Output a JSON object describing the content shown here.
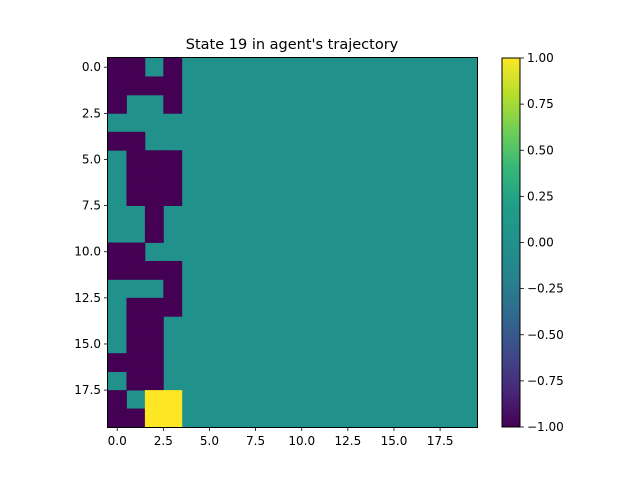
{
  "chart_data": {
    "type": "heatmap",
    "title": "State 19 in agent's trajectory",
    "rows": 20,
    "cols": 20,
    "x_ticks": [
      "0.0",
      "2.5",
      "5.0",
      "7.5",
      "10.0",
      "12.5",
      "15.0",
      "17.5"
    ],
    "y_ticks": [
      "0.0",
      "2.5",
      "5.0",
      "7.5",
      "10.0",
      "12.5",
      "15.0",
      "17.5"
    ],
    "tick_values": [
      0.0,
      2.5,
      5.0,
      7.5,
      10.0,
      12.5,
      15.0,
      17.5
    ],
    "colorbar": {
      "min": -1.0,
      "max": 1.0,
      "ticks": [
        "1.00",
        "0.75",
        "0.50",
        "0.25",
        "0.00",
        "−0.25",
        "−0.50",
        "−0.75",
        "−1.00"
      ],
      "tick_values": [
        1.0,
        0.75,
        0.5,
        0.25,
        0.0,
        -0.25,
        -0.5,
        -0.75,
        -1.0
      ],
      "colormap": "viridis"
    },
    "colors": {
      "neg": "#440154",
      "zero": "#21918c",
      "pos": "#fde725"
    },
    "grid": false,
    "values_first_cols": [
      [
        -1,
        -1,
        0,
        -1
      ],
      [
        -1,
        -1,
        -1,
        -1
      ],
      [
        -1,
        0,
        0,
        -1
      ],
      [
        0,
        0,
        0,
        0
      ],
      [
        -1,
        -1,
        0,
        0
      ],
      [
        0,
        -1,
        -1,
        -1
      ],
      [
        0,
        -1,
        -1,
        -1
      ],
      [
        0,
        -1,
        -1,
        -1
      ],
      [
        0,
        0,
        -1,
        0
      ],
      [
        0,
        0,
        -1,
        0
      ],
      [
        -1,
        -1,
        0,
        0
      ],
      [
        -1,
        -1,
        -1,
        -1
      ],
      [
        0,
        0,
        0,
        -1
      ],
      [
        0,
        -1,
        -1,
        -1
      ],
      [
        0,
        -1,
        -1,
        0
      ],
      [
        0,
        -1,
        -1,
        0
      ],
      [
        -1,
        -1,
        -1,
        0
      ],
      [
        0,
        -1,
        -1,
        0
      ],
      [
        -1,
        0,
        1,
        1
      ],
      [
        -1,
        -1,
        1,
        1
      ]
    ],
    "values_remaining_cols": 0
  }
}
